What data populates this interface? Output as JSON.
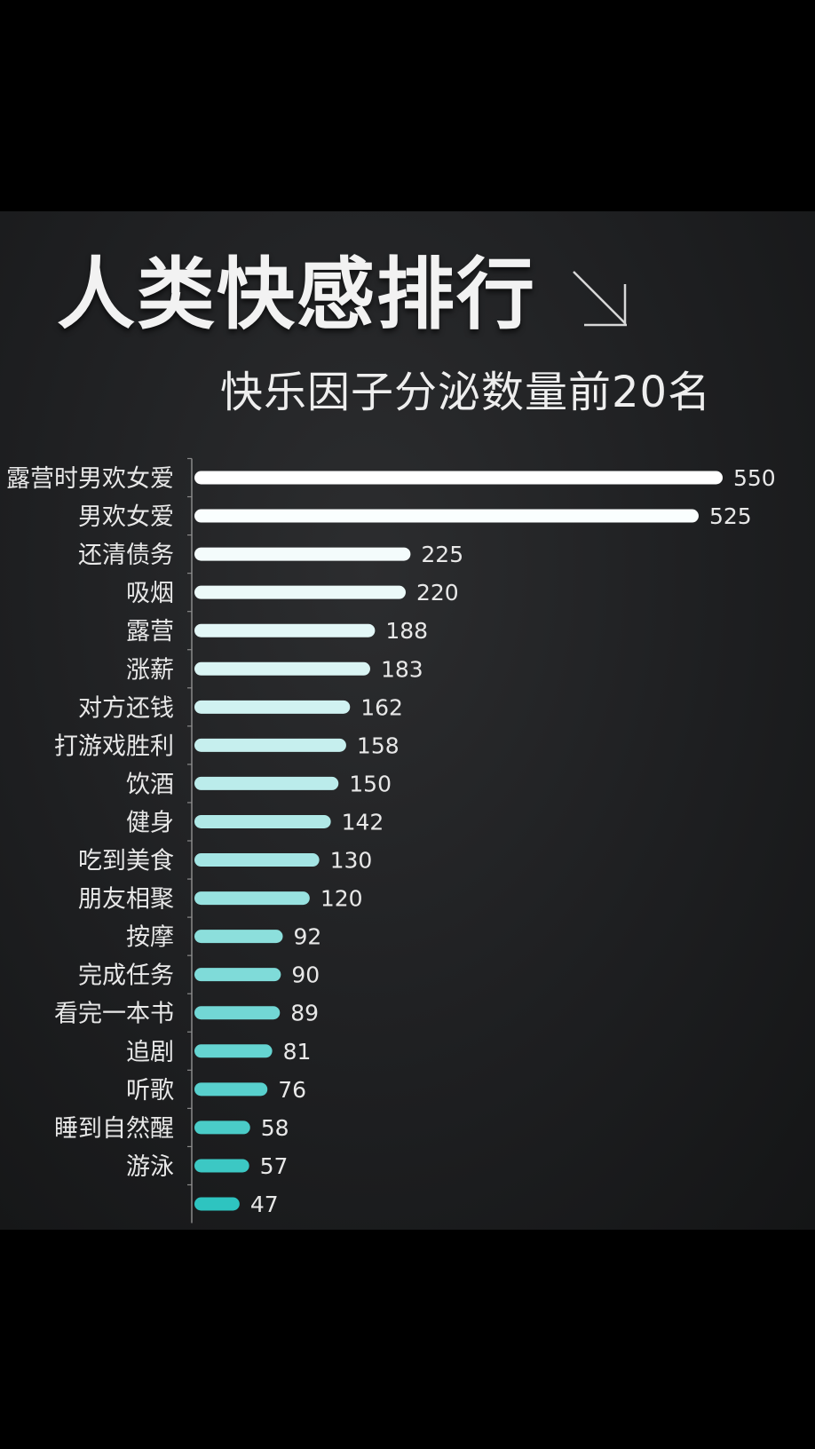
{
  "chart_data": {
    "type": "bar",
    "orientation": "horizontal",
    "title": "人类快感排行",
    "subtitle": "快乐因子分泌数量前20名",
    "categories": [
      "露营时男欢女爱",
      "男欢女爱",
      "还清债务",
      "吸烟",
      "露营",
      "涨薪",
      "对方还钱",
      "打游戏胜利",
      "饮酒",
      "健身",
      "吃到美食",
      "朋友相聚",
      "按摩",
      "完成任务",
      "看完一本书",
      "追剧",
      "听歌",
      "睡到自然醒",
      "游泳",
      ""
    ],
    "values": [
      550,
      525,
      225,
      220,
      188,
      183,
      162,
      158,
      150,
      142,
      130,
      120,
      92,
      90,
      89,
      81,
      76,
      58,
      57,
      47
    ],
    "xlim": [
      0,
      550
    ],
    "grid": false,
    "legend": "none",
    "colors": {
      "top": "#ffffff",
      "bottom": "#2ec4c0",
      "label": "#e8e8e8",
      "axis": "#8a8a8a"
    }
  }
}
